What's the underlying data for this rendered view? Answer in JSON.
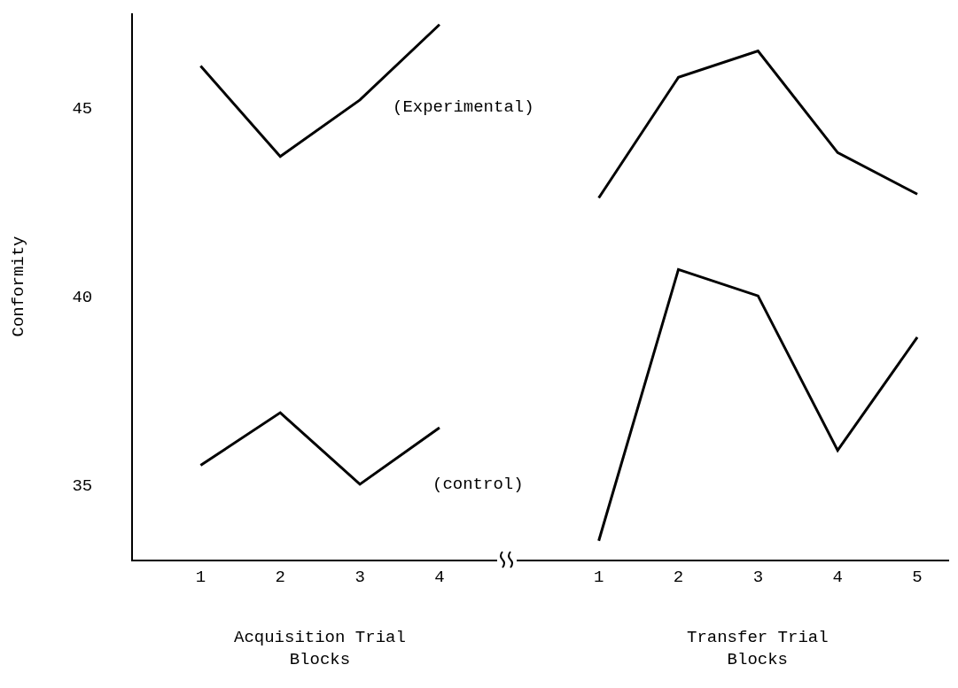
{
  "chart_data": {
    "type": "line",
    "ylabel": "Conformity",
    "categories": [
      "1",
      "2",
      "3",
      "4",
      null,
      "1",
      "2",
      "3",
      "4",
      "5"
    ],
    "series": [
      {
        "name": "(Experimental)",
        "color": "#000000",
        "values": [
          46.1,
          43.7,
          45.2,
          47.2,
          null,
          42.6,
          45.8,
          46.5,
          43.8,
          42.7
        ]
      },
      {
        "name": "(control)",
        "color": "#000000",
        "values": [
          35.5,
          36.9,
          35.0,
          36.5,
          null,
          33.5,
          40.7,
          40.0,
          35.9,
          38.9
        ]
      }
    ],
    "annotations": [
      "Acquisition Trial\nBlocks",
      "Transfer Trial\nBlocks"
    ],
    "ylim": [
      33,
      47.5
    ],
    "yticks": [
      35,
      40,
      45
    ],
    "grid": false,
    "legend": false,
    "marker": "none",
    "line_style": "solid"
  }
}
